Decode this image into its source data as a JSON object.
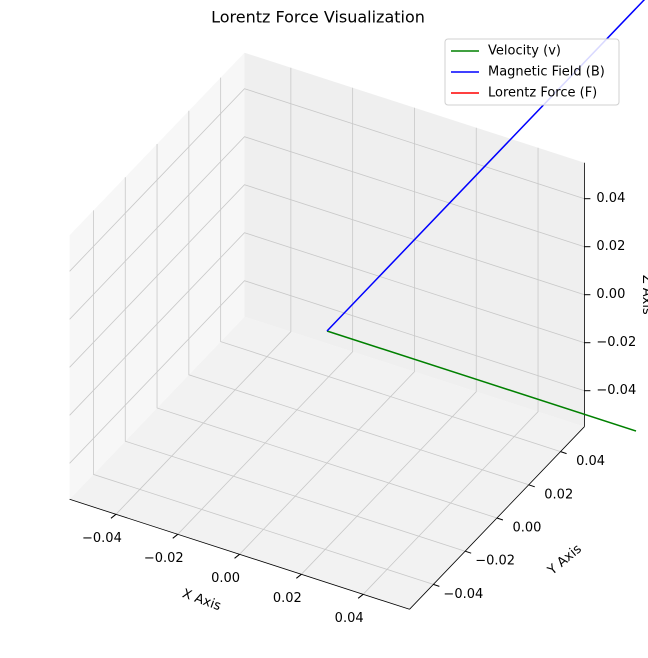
{
  "chart_data": {
    "type": "line3d",
    "title": "Lorentz Force Visualization",
    "xlabel": "X Axis",
    "ylabel": "Y Axis",
    "zlabel": "Z Axis",
    "xlim": [
      -0.055,
      0.055
    ],
    "ylim": [
      -0.055,
      0.055
    ],
    "zlim": [
      -0.055,
      0.055
    ],
    "xticks": [
      {
        "value": -0.04,
        "label": "−0.04"
      },
      {
        "value": -0.02,
        "label": "−0.02"
      },
      {
        "value": 0,
        "label": "0.00"
      },
      0.02,
      0.04
    ],
    "yticks": [
      {
        "value": -0.04,
        "label": "−0.04"
      },
      {
        "value": -0.02,
        "label": "−0.02"
      },
      {
        "value": 0,
        "label": "0.00"
      },
      0.02,
      0.04
    ],
    "zticks": [
      {
        "value": -0.04,
        "label": "−0.04"
      },
      {
        "value": -0.02,
        "label": "−0.02"
      },
      {
        "value": 0,
        "label": "0.00"
      },
      0.02,
      0.04
    ],
    "grid": true,
    "legend": "upper right",
    "series": [
      {
        "name": "Velocity (v)",
        "color": "#008000",
        "x": [
          0,
          0.1
        ],
        "y": [
          0,
          0
        ],
        "z": [
          0,
          0
        ]
      },
      {
        "name": "Magnetic Field (B)",
        "color": "#0000ff",
        "x": [
          0,
          0
        ],
        "y": [
          0,
          0.2
        ],
        "z": [
          0,
          0
        ]
      },
      {
        "name": "Lorentz Force (F)",
        "color": "#ff0000",
        "x": [
          0,
          0
        ],
        "y": [
          0,
          0
        ],
        "z": [
          0,
          0
        ]
      }
    ]
  }
}
